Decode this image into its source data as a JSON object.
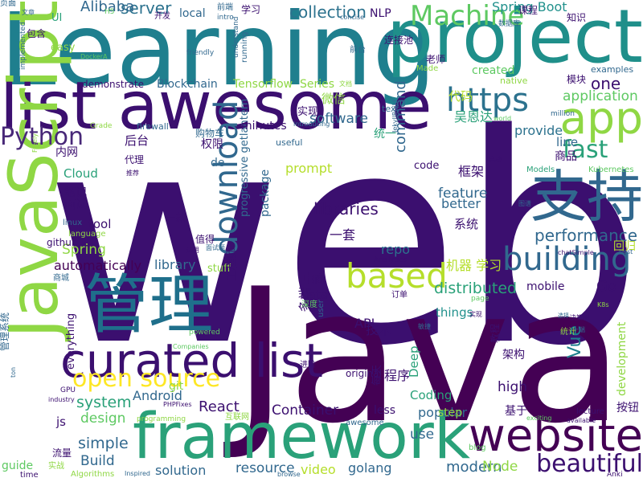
{
  "words": [
    {
      "text": "web",
      "color": "#3b0f6f"
    },
    {
      "text": "Java",
      "color": "#440154"
    },
    {
      "text": "Learning",
      "color": "#1f7f8e"
    },
    {
      "text": "project",
      "color": "#1f8f8a"
    },
    {
      "text": "list awesome",
      "color": "#3b0f6f"
    },
    {
      "text": "JavaScript",
      "color": "#8fd744"
    },
    {
      "text": "framework",
      "color": "#2aa179"
    },
    {
      "text": "管理",
      "color": "#1f6f8b"
    },
    {
      "text": "支持",
      "color": "#31688e"
    },
    {
      "text": "curated list",
      "color": "#3b0f6f"
    },
    {
      "text": "website",
      "color": "#440154"
    },
    {
      "text": "app",
      "color": "#8fd744"
    },
    {
      "text": "https",
      "color": "#2c728e"
    },
    {
      "text": "Machine",
      "color": "#5ec962"
    },
    {
      "text": "building",
      "color": "#31688e"
    },
    {
      "text": "based",
      "color": "#b5de2b"
    },
    {
      "text": "download",
      "color": "#31688e"
    },
    {
      "text": "open source",
      "color": "#fde725"
    },
    {
      "text": "Python",
      "color": "#482878"
    },
    {
      "text": "fast",
      "color": "#2aa179"
    },
    {
      "text": "beautiful",
      "color": "#3b0f6f"
    },
    {
      "text": "performance",
      "color": "#31688e"
    },
    {
      "text": "collection",
      "color": "#2c728e"
    },
    {
      "text": "server",
      "color": "#2c728e"
    },
    {
      "text": "Alibaba",
      "color": "#31688e"
    },
    {
      "text": "Spring Boot",
      "color": "#21918c"
    },
    {
      "text": "software",
      "color": "#31688e"
    },
    {
      "text": "application",
      "color": "#5ec962"
    },
    {
      "text": "distributed",
      "color": "#2aa179"
    },
    {
      "text": "libraries",
      "color": "#3b0f6f"
    },
    {
      "text": "Android",
      "color": "#31688e"
    },
    {
      "text": "system",
      "color": "#2aa179"
    },
    {
      "text": "React",
      "color": "#3b0f6f"
    },
    {
      "text": "simple",
      "color": "#31688e"
    },
    {
      "text": "Build",
      "color": "#31688e"
    },
    {
      "text": "solution",
      "color": "#31688e"
    },
    {
      "text": "Spring",
      "color": "#8fd744"
    },
    {
      "text": "automatically",
      "color": "#440154"
    },
    {
      "text": "library",
      "color": "#31688e"
    },
    {
      "text": "design",
      "color": "#5ec962"
    },
    {
      "text": "Container",
      "color": "#3b0f6f"
    },
    {
      "text": "resource",
      "color": "#31688e"
    },
    {
      "text": "video",
      "color": "#b5de2b"
    },
    {
      "text": "golang",
      "color": "#31688e"
    },
    {
      "text": "modern",
      "color": "#31688e"
    },
    {
      "text": "Node",
      "color": "#8fd744"
    },
    {
      "text": "high",
      "color": "#3b0f6f"
    },
    {
      "text": "Vue",
      "color": "#1f7f8e"
    },
    {
      "text": "development",
      "color": "#8fd744"
    },
    {
      "text": "Go",
      "color": "#3b0f6f"
    },
    {
      "text": "one",
      "color": "#3b0f6f"
    },
    {
      "text": "feature",
      "color": "#31688e"
    },
    {
      "text": "better",
      "color": "#31688e"
    },
    {
      "text": "command",
      "color": "#31688e"
    },
    {
      "text": "prompt",
      "color": "#b5de2b"
    },
    {
      "text": "package",
      "color": "#31688e"
    },
    {
      "text": "progressive getlantern",
      "color": "#31688e"
    },
    {
      "text": "repo",
      "color": "#2c728e"
    },
    {
      "text": "API",
      "color": "#3b0f6f"
    },
    {
      "text": "data",
      "color": "#3b0f6f"
    },
    {
      "text": "things",
      "color": "#21918c"
    },
    {
      "text": "mobile",
      "color": "#3b0f6f"
    },
    {
      "text": "Deep",
      "color": "#2aa179"
    },
    {
      "text": "Coding",
      "color": "#2aa179"
    },
    {
      "text": "popular",
      "color": "#31688e"
    },
    {
      "text": "step",
      "color": "#8fd744"
    },
    {
      "text": "use",
      "color": "#31688e"
    },
    {
      "text": "less",
      "color": "#3b0f6f"
    },
    {
      "text": "guide",
      "color": "#5ec962"
    },
    {
      "text": "js",
      "color": "#3b0f6f"
    },
    {
      "text": "git",
      "color": "#8fd744"
    },
    {
      "text": "minutes",
      "color": "#3b0f6f"
    },
    {
      "text": "code",
      "color": "#3b0f6f"
    },
    {
      "text": "provide",
      "color": "#2c728e"
    },
    {
      "text": "line",
      "color": "#31688e"
    },
    {
      "text": "created",
      "color": "#5ec962"
    },
    {
      "text": "Blockchain",
      "color": "#31688e"
    },
    {
      "text": "Tensorflow",
      "color": "#8fd744"
    },
    {
      "text": "Series",
      "color": "#8fd744"
    },
    {
      "text": "Cloud",
      "color": "#2aa179"
    },
    {
      "text": "tool",
      "color": "#3b0f6f"
    },
    {
      "text": "de",
      "color": "#31688e"
    },
    {
      "text": "stuff",
      "color": "#8fd744"
    },
    {
      "text": "everything",
      "color": "#3b0f6f"
    },
    {
      "text": "local",
      "color": "#31688e"
    },
    {
      "text": "UI",
      "color": "#2aa179"
    },
    {
      "text": "easy",
      "color": "#8fd744"
    },
    {
      "text": "NLP",
      "color": "#3b0f6f"
    },
    {
      "text": "demonstrate",
      "color": "#3b0f6f"
    },
    {
      "text": "firewall",
      "color": "#31688e"
    },
    {
      "text": "useful",
      "color": "#31688e"
    },
    {
      "text": "text",
      "color": "#31688e"
    },
    {
      "text": "examples",
      "color": "#31688e"
    },
    {
      "text": "native",
      "color": "#8fd744"
    },
    {
      "text": "Made",
      "color": "#8fd744"
    },
    {
      "text": "running",
      "color": "#31688e"
    },
    {
      "text": "intro",
      "color": "#31688e"
    },
    {
      "text": "concise",
      "color": "#31688e"
    },
    {
      "text": "implemented",
      "color": "#31688e"
    },
    {
      "text": "friendly",
      "color": "#31688e"
    },
    {
      "text": "understand",
      "color": "#31688e"
    },
    {
      "text": "DockerA",
      "color": "#5ec962"
    },
    {
      "text": "Grade",
      "color": "#8fd744"
    },
    {
      "text": "introducing",
      "color": "#31688e"
    },
    {
      "text": "world",
      "color": "#5ec962"
    },
    {
      "text": "million",
      "color": "#31688e"
    },
    {
      "text": "JekyllBuild",
      "color": "#31688e"
    },
    {
      "text": "Models",
      "color": "#2aa179"
    },
    {
      "text": "Kubernetes",
      "color": "#5ec962"
    },
    {
      "text": "best",
      "color": "#31688e"
    },
    {
      "text": "chatSimple",
      "color": "#3b0f6f"
    },
    {
      "text": "Analytics",
      "color": "#3b0f6f"
    },
    {
      "text": "lecture",
      "color": "#3b0f6f"
    },
    {
      "text": "available",
      "color": "#3b0f6f"
    },
    {
      "text": "exciting",
      "color": "#5ec962"
    },
    {
      "text": "Anki",
      "color": "#3b0f6f"
    },
    {
      "text": "blog",
      "color": "#5ec962"
    },
    {
      "text": "browse",
      "color": "#31688e"
    },
    {
      "text": "Algorithms",
      "color": "#8fd744"
    },
    {
      "text": "Inspired",
      "color": "#31688e"
    },
    {
      "text": "time",
      "color": "#3b0f6f"
    },
    {
      "text": "programming",
      "color": "#8fd744"
    },
    {
      "text": "PHPFixes",
      "color": "#3b0f6f"
    },
    {
      "text": "industry",
      "color": "#3b0f6f"
    },
    {
      "text": "GPU",
      "color": "#3b0f6f"
    },
    {
      "text": "ton",
      "color": "#31688e"
    },
    {
      "text": "Freely",
      "color": "#8fd744"
    },
    {
      "text": "linux",
      "color": "#31688e"
    },
    {
      "text": "language",
      "color": "#8fd744"
    },
    {
      "text": "github",
      "color": "#3b0f6f"
    },
    {
      "text": "Companies",
      "color": "#5ec962"
    },
    {
      "text": "powered",
      "color": "#5ec962"
    },
    {
      "text": "original",
      "color": "#3b0f6f"
    },
    {
      "text": "awesome",
      "color": "#31688e"
    },
    {
      "text": "user",
      "color": "#31688e"
    },
    {
      "text": "page",
      "color": "#5ec962"
    },
    {
      "text": "H5",
      "color": "#5ec962"
    },
    {
      "text": "学习",
      "color": "#3b0f6f"
    },
    {
      "text": "课程",
      "color": "#3b0f6f"
    },
    {
      "text": "知识",
      "color": "#3b0f6f"
    },
    {
      "text": "前端",
      "color": "#31688e"
    },
    {
      "text": "开发",
      "color": "#3b0f6f"
    },
    {
      "text": "包含",
      "color": "#3b0f6f"
    },
    {
      "text": "数据库",
      "color": "#31688e"
    },
    {
      "text": "连接池",
      "color": "#3b0f6f"
    },
    {
      "text": "老师",
      "color": "#3b0f6f"
    },
    {
      "text": "前台",
      "color": "#31688e"
    },
    {
      "text": "模块",
      "color": "#3b0f6f"
    },
    {
      "text": "代码",
      "color": "#b5de2b"
    },
    {
      "text": "吴恩达",
      "color": "#2aa179"
    },
    {
      "text": "实现",
      "color": "#3b0f6f"
    },
    {
      "text": "微信",
      "color": "#8fd744"
    },
    {
      "text": "统一",
      "color": "#2aa179"
    },
    {
      "text": "购物车",
      "color": "#31688e"
    },
    {
      "text": "权限",
      "color": "#3b0f6f"
    },
    {
      "text": "后台",
      "color": "#3b0f6f"
    },
    {
      "text": "内网",
      "color": "#3b0f6f"
    },
    {
      "text": "代理",
      "color": "#3b0f6f"
    },
    {
      "text": "笔记",
      "color": "#3b0f6f"
    },
    {
      "text": "面试",
      "color": "#3b0f6f"
    },
    {
      "text": "框架",
      "color": "#3b0f6f"
    },
    {
      "text": "商品",
      "color": "#3b0f6f"
    },
    {
      "text": "一款",
      "color": "#3b0f6f"
    },
    {
      "text": "一套",
      "color": "#3b0f6f"
    },
    {
      "text": "系统",
      "color": "#3b0f6f"
    },
    {
      "text": "值得",
      "color": "#3b0f6f"
    },
    {
      "text": "面试题",
      "color": "#31688e"
    },
    {
      "text": "机器 学习",
      "color": "#b5de2b"
    },
    {
      "text": "回归",
      "color": "#b5de2b"
    },
    {
      "text": "电商",
      "color": "#3b0f6f"
    },
    {
      "text": "多端",
      "color": "#3b0f6f"
    },
    {
      "text": "工程师",
      "color": "#3b0f6f"
    },
    {
      "text": "技术",
      "color": "#3b0f6f"
    },
    {
      "text": "架构",
      "color": "#3b0f6f"
    },
    {
      "text": "程序",
      "color": "#3b0f6f"
    },
    {
      "text": "每天",
      "color": "#3b0f6f"
    },
    {
      "text": "基于",
      "color": "#3b0f6f"
    },
    {
      "text": "按钮",
      "color": "#3b0f6f"
    },
    {
      "text": "流量",
      "color": "#3b0f6f"
    },
    {
      "text": "实战",
      "color": "#8fd744"
    },
    {
      "text": "互联网",
      "color": "#8fd744"
    },
    {
      "text": "管理系统",
      "color": "#31688e"
    },
    {
      "text": "进阶",
      "color": "#3b0f6f"
    },
    {
      "text": "教程",
      "color": "#3b0f6f"
    },
    {
      "text": "深度",
      "color": "#5ec962"
    },
    {
      "text": "订单",
      "color": "#3b0f6f"
    },
    {
      "text": "商城",
      "color": "#31688e"
    },
    {
      "text": "统计",
      "color": "#8fd744"
    },
    {
      "text": "决策树",
      "color": "#3b0f6f"
    },
    {
      "text": "图谱",
      "color": "#31688e"
    },
    {
      "text": "启动",
      "color": "#3b0f6f"
    },
    {
      "text": "推荐",
      "color": "#3b0f6f"
    },
    {
      "text": "适用",
      "color": "#3b0f6f"
    },
    {
      "text": "文章",
      "color": "#31688e"
    },
    {
      "text": "文档",
      "color": "#8fd744"
    },
    {
      "text": "一端",
      "color": "#31688e"
    },
    {
      "text": "敏捷",
      "color": "#31688e"
    },
    {
      "text": "选择",
      "color": "#31688e"
    },
    {
      "text": "K8s",
      "color": "#8fd744"
    },
    {
      "text": "实现",
      "color": "#3b0f6f"
    },
    {
      "text": "页面",
      "color": "#31688e"
    }
  ]
}
